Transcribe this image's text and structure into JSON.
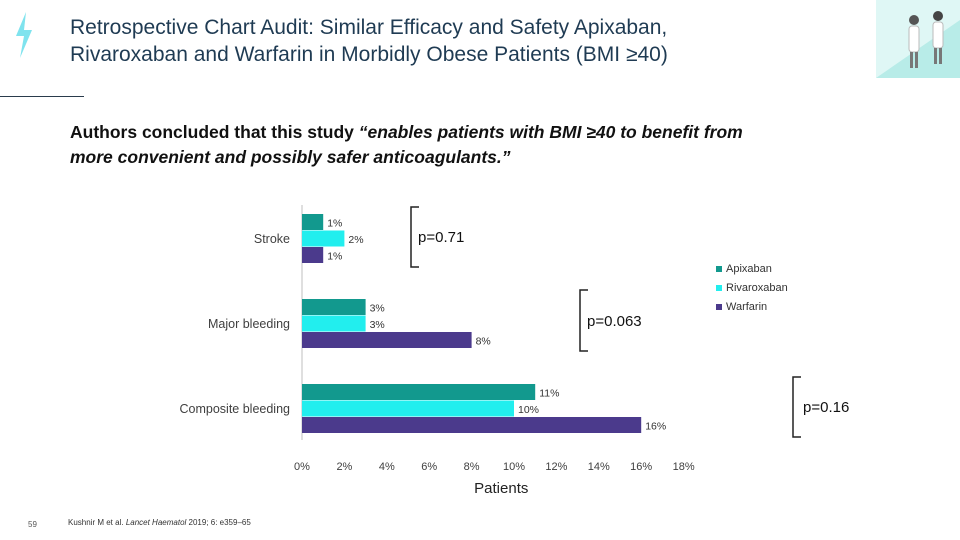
{
  "header": {
    "title_line1": "Retrospective Chart Audit: Similar Efficacy and Safety Apixaban,",
    "title_line2": "Rivaroxaban and Warfarin in Morbidly Obese Patients (BMI ≥40)"
  },
  "subtitle": {
    "line1_start": "Authors concluded that this study ",
    "line1_quote": "“enables patients with BMI ≥40 to benefit from",
    "line2_quote": "more convenient and possibly safer anticoagulants.”"
  },
  "footnote": {
    "authors": "Kushnir M et al. ",
    "journal": "Lancet Haematol",
    "citation": " 2019; 6: e359–65"
  },
  "page_number": "59",
  "colors": {
    "apixaban": "#12998e",
    "rivaroxaban": "#22eeee",
    "warfarin": "#4b3a8c",
    "title": "#1f3b53"
  },
  "chart_data": {
    "type": "bar",
    "orientation": "horizontal",
    "categories": [
      "Stroke",
      "Major bleeding",
      "Composite bleeding"
    ],
    "series": [
      {
        "name": "Apixaban",
        "values": [
          1,
          3,
          11
        ],
        "labels": [
          "1%",
          "3%",
          "11%"
        ]
      },
      {
        "name": "Rivaroxaban",
        "values": [
          2,
          3,
          10
        ],
        "labels": [
          "2%",
          "3%",
          "10%"
        ]
      },
      {
        "name": "Warfarin",
        "values": [
          1,
          8,
          16
        ],
        "labels": [
          "1%",
          "8%",
          "16%"
        ]
      }
    ],
    "p_values": [
      "p=0.71",
      "p=0.063",
      "p=0.16"
    ],
    "xlabel": "Patients",
    "xlim": [
      0,
      18
    ],
    "xticks": [
      "0%",
      "2%",
      "4%",
      "6%",
      "8%",
      "10%",
      "12%",
      "14%",
      "16%",
      "18%"
    ],
    "legend": [
      "Apixaban",
      "Rivaroxaban",
      "Warfarin"
    ],
    "legend_position": "right",
    "grid": false
  }
}
